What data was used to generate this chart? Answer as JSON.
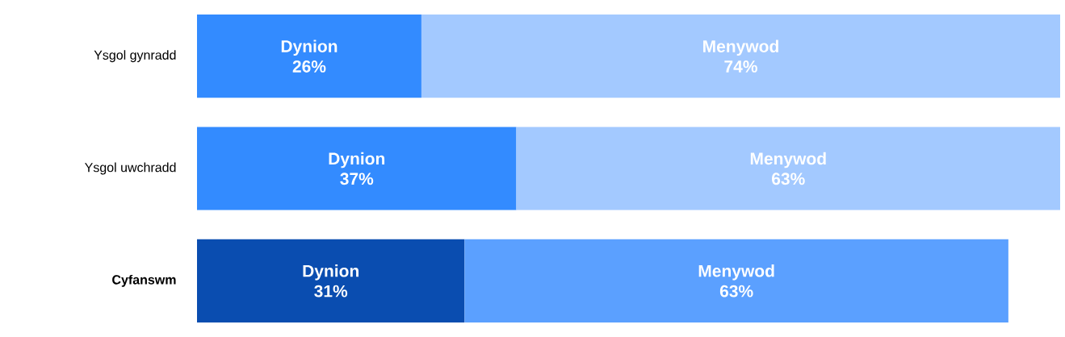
{
  "chart_data": {
    "type": "bar",
    "orientation": "horizontal",
    "stacked": true,
    "tick_labels": "y",
    "categories": [
      "Ysgol gynradd",
      "Ysgol uwchradd",
      "**Cyfanswm**"
    ],
    "xlim": [
      0,
      100
    ],
    "series": [
      {
        "name": "Dynion",
        "values": [
          26,
          37,
          31
        ],
        "colors": [
          "#338bff",
          "#338bff",
          "#0a4db0"
        ],
        "value_labels": [
          "26%",
          "37%",
          "31%"
        ]
      },
      {
        "name": "Menywod",
        "values": [
          74,
          63,
          63
        ],
        "colors": [
          "#a3c9ff",
          "#a3c9ff",
          "#5ba0ff"
        ],
        "value_labels": [
          "74%",
          "63%",
          "63%"
        ]
      }
    ]
  }
}
